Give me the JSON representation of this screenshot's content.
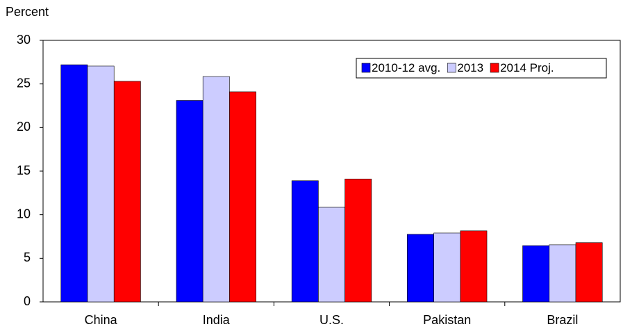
{
  "chart_data": {
    "type": "bar",
    "y_label": "Percent",
    "categories": [
      "China",
      "India",
      "U.S.",
      "Pakistan",
      "Brazil"
    ],
    "series": [
      {
        "name": "2010-12 avg.",
        "color": "#0000ff",
        "values": [
          27.2,
          23.1,
          13.9,
          7.75,
          6.45
        ]
      },
      {
        "name": "2013",
        "color": "#ccccff",
        "values": [
          27.05,
          25.85,
          10.85,
          7.9,
          6.55
        ]
      },
      {
        "name": "2014 Proj.",
        "color": "#ff0000",
        "values": [
          25.3,
          24.1,
          14.1,
          8.15,
          6.8
        ]
      }
    ],
    "ylim": [
      0,
      30
    ],
    "yticks": [
      0,
      5,
      10,
      15,
      20,
      25,
      30
    ],
    "grid": false,
    "legend": "top-right"
  }
}
